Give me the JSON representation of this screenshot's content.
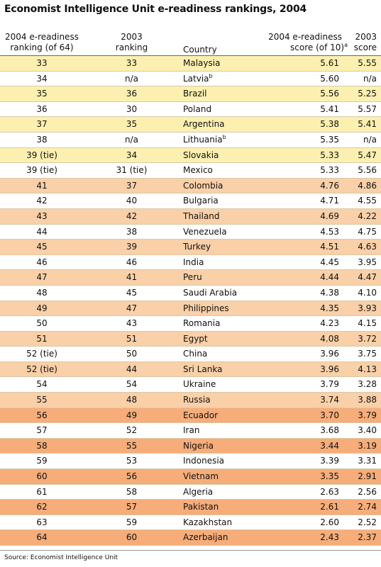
{
  "title": "Economist Intelligence Unit e-readiness rankings, 2004",
  "columns": {
    "rank2004": [
      "2004 e-readiness",
      "ranking (of 64)"
    ],
    "rank2003": [
      "2003",
      "ranking"
    ],
    "country": "Country",
    "score2004": [
      "2004 e-readiness",
      "score (of 10)"
    ],
    "score2004_sup": "a",
    "score2003": [
      "2003",
      "score"
    ]
  },
  "colors": {
    "band_yellow": "#fbf0b0",
    "band_peach": "#f9d0a8",
    "band_orange": "#f6ad7a",
    "plain": "#ffffff"
  },
  "rows": [
    {
      "rank": "33",
      "rank2003": "33",
      "country": "Malaysia",
      "sup": "",
      "score": "5.61",
      "score2003": "5.55",
      "band": "yellow"
    },
    {
      "rank": "34",
      "rank2003": "n/a",
      "country": "Latvia",
      "sup": "b",
      "score": "5.60",
      "score2003": "n/a",
      "band": "plain"
    },
    {
      "rank": "35",
      "rank2003": "36",
      "country": "Brazil",
      "sup": "",
      "score": "5.56",
      "score2003": "5.25",
      "band": "yellow"
    },
    {
      "rank": "36",
      "rank2003": "30",
      "country": "Poland",
      "sup": "",
      "score": "5.41",
      "score2003": "5.57",
      "band": "plain"
    },
    {
      "rank": "37",
      "rank2003": "35",
      "country": "Argentina",
      "sup": "",
      "score": "5.38",
      "score2003": "5.41",
      "band": "yellow"
    },
    {
      "rank": "38",
      "rank2003": "n/a",
      "country": "Lithuania",
      "sup": "b",
      "score": "5.35",
      "score2003": "n/a",
      "band": "plain"
    },
    {
      "rank": "39 (tie)",
      "rank2003": "34",
      "country": "Slovakia",
      "sup": "",
      "score": "5.33",
      "score2003": "5.47",
      "band": "yellow"
    },
    {
      "rank": "39 (tie)",
      "rank2003": "31 (tie)",
      "country": "Mexico",
      "sup": "",
      "score": "5.33",
      "score2003": "5.56",
      "band": "plain"
    },
    {
      "rank": "41",
      "rank2003": "37",
      "country": "Colombia",
      "sup": "",
      "score": "4.76",
      "score2003": "4.86",
      "band": "peach"
    },
    {
      "rank": "42",
      "rank2003": "40",
      "country": "Bulgaria",
      "sup": "",
      "score": "4.71",
      "score2003": "4.55",
      "band": "plain"
    },
    {
      "rank": "43",
      "rank2003": "42",
      "country": "Thailand",
      "sup": "",
      "score": "4.69",
      "score2003": "4.22",
      "band": "peach"
    },
    {
      "rank": "44",
      "rank2003": "38",
      "country": "Venezuela",
      "sup": "",
      "score": "4.53",
      "score2003": "4.75",
      "band": "plain"
    },
    {
      "rank": "45",
      "rank2003": "39",
      "country": "Turkey",
      "sup": "",
      "score": "4.51",
      "score2003": "4.63",
      "band": "peach"
    },
    {
      "rank": "46",
      "rank2003": "46",
      "country": "India",
      "sup": "",
      "score": "4.45",
      "score2003": "3.95",
      "band": "plain"
    },
    {
      "rank": "47",
      "rank2003": "41",
      "country": "Peru",
      "sup": "",
      "score": "4.44",
      "score2003": "4.47",
      "band": "peach"
    },
    {
      "rank": "48",
      "rank2003": "45",
      "country": "Saudi Arabia",
      "sup": "",
      "score": "4.38",
      "score2003": "4.10",
      "band": "plain"
    },
    {
      "rank": "49",
      "rank2003": "47",
      "country": "Philippines",
      "sup": "",
      "score": "4.35",
      "score2003": "3.93",
      "band": "peach"
    },
    {
      "rank": "50",
      "rank2003": "43",
      "country": "Romania",
      "sup": "",
      "score": "4.23",
      "score2003": "4.15",
      "band": "plain"
    },
    {
      "rank": "51",
      "rank2003": "51",
      "country": "Egypt",
      "sup": "",
      "score": "4.08",
      "score2003": "3.72",
      "band": "peach"
    },
    {
      "rank": "52 (tie)",
      "rank2003": "50",
      "country": "China",
      "sup": "",
      "score": "3.96",
      "score2003": "3.75",
      "band": "plain"
    },
    {
      "rank": "52 (tie)",
      "rank2003": "44",
      "country": "Sri Lanka",
      "sup": "",
      "score": "3.96",
      "score2003": "4.13",
      "band": "peach"
    },
    {
      "rank": "54",
      "rank2003": "54",
      "country": "Ukraine",
      "sup": "",
      "score": "3.79",
      "score2003": "3.28",
      "band": "plain"
    },
    {
      "rank": "55",
      "rank2003": "48",
      "country": "Russia",
      "sup": "",
      "score": "3.74",
      "score2003": "3.88",
      "band": "peach"
    },
    {
      "rank": "56",
      "rank2003": "49",
      "country": "Ecuador",
      "sup": "",
      "score": "3.70",
      "score2003": "3.79",
      "band": "orange"
    },
    {
      "rank": "57",
      "rank2003": "52",
      "country": "Iran",
      "sup": "",
      "score": "3.68",
      "score2003": "3.40",
      "band": "plain"
    },
    {
      "rank": "58",
      "rank2003": "55",
      "country": "Nigeria",
      "sup": "",
      "score": "3.44",
      "score2003": "3.19",
      "band": "orange"
    },
    {
      "rank": "59",
      "rank2003": "53",
      "country": "Indonesia",
      "sup": "",
      "score": "3.39",
      "score2003": "3.31",
      "band": "plain"
    },
    {
      "rank": "60",
      "rank2003": "56",
      "country": "Vietnam",
      "sup": "",
      "score": "3.35",
      "score2003": "2.91",
      "band": "orange"
    },
    {
      "rank": "61",
      "rank2003": "58",
      "country": "Algeria",
      "sup": "",
      "score": "2.63",
      "score2003": "2.56",
      "band": "plain"
    },
    {
      "rank": "62",
      "rank2003": "57",
      "country": "Pakistan",
      "sup": "",
      "score": "2.61",
      "score2003": "2.74",
      "band": "orange"
    },
    {
      "rank": "63",
      "rank2003": "59",
      "country": "Kazakhstan",
      "sup": "",
      "score": "2.60",
      "score2003": "2.52",
      "band": "plain"
    },
    {
      "rank": "64",
      "rank2003": "60",
      "country": "Azerbaijan",
      "sup": "",
      "score": "2.43",
      "score2003": "2.37",
      "band": "orange"
    }
  ],
  "source": "Source: Economist Intelligence Unit"
}
